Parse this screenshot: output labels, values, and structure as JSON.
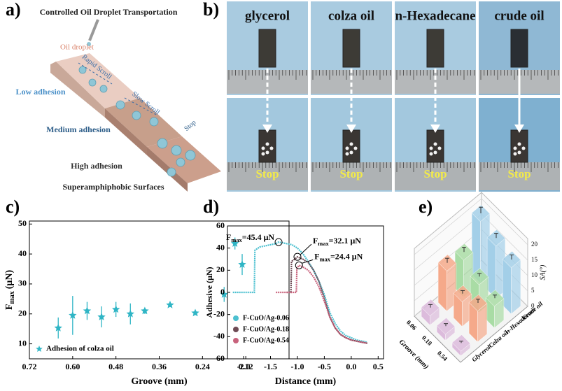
{
  "panel_labels": [
    "a)",
    "b)",
    "c)",
    "d)",
    "e)"
  ],
  "illustration": {
    "title": "Controlled Oil Droplet Transportation",
    "droplet": "Oil droplet",
    "scrolls": [
      "Rapid Scroll",
      "Slow Scroll",
      "Stop"
    ],
    "zones": [
      "Low adhesion",
      "Medium adhesion",
      "High adhesion"
    ],
    "caption": "Superamphiphobic Surfaces"
  },
  "photos": {
    "liquids": [
      "glycerol",
      "colza oil",
      "n-Hexadecane",
      "crude oil"
    ],
    "end_label": "Stop"
  },
  "chart_data": [
    {
      "type": "scatter",
      "xlabel": "Groove (mm)",
      "ylabel": {
        "symbol": "F",
        "sub": "max",
        "unit": "(μN)"
      },
      "xlim": [
        0.72,
        0
      ],
      "ylim": [
        5,
        51
      ],
      "xticks": [
        0.72,
        {
          "value": 0.6,
          "label": "0.60"
        },
        0.48,
        0.36,
        0.24,
        0.12
      ],
      "yticks": [
        10,
        20,
        30,
        40,
        50
      ],
      "legend": "lower left",
      "series": [
        {
          "name": "Adhesion of colza oil",
          "color": "#2fb5c5",
          "x": [
            0.64,
            0.6,
            0.56,
            0.52,
            0.48,
            0.44,
            0.4,
            0.33,
            0.26,
            0.18,
            0.15,
            0.13
          ],
          "values": [
            15.3,
            19.5,
            21,
            19,
            21.5,
            20,
            21,
            23,
            20.3,
            26.5,
            43.5,
            36.5
          ],
          "errors": [
            3.5,
            6.5,
            3,
            3.5,
            2.5,
            3.5,
            1,
            0.7,
            0.3,
            2.5,
            2,
            3.5
          ]
        }
      ]
    },
    {
      "type": "line",
      "xlabel": "Distance (mm)",
      "ylabel": "Adhesive (μN)",
      "xlim": [
        -2.3,
        0.6
      ],
      "ylim": [
        -60,
        60
      ],
      "xticks": [
        {
          "value": -2,
          "label": "-2.0"
        },
        -1.5,
        {
          "value": -1,
          "label": "-1.0"
        },
        -0.5,
        {
          "value": 0,
          "label": "0.0"
        },
        0.5
      ],
      "yticks": [
        -60,
        -40,
        -20,
        0,
        20,
        40,
        60
      ],
      "legend": "lower left",
      "series": [
        {
          "name": "F-CuO/Ag-0.06",
          "color": "#4cc0d0",
          "x": [
            -2.2,
            -1.85,
            -1.8,
            -1.79,
            -1.7,
            -1.6,
            -1.5,
            -1.4,
            -1.35,
            -1.3,
            -1.2,
            -1.1,
            -1.0,
            -0.9,
            -0.8,
            -0.7,
            -0.6,
            -0.5,
            -0.4,
            -0.3,
            -0.2,
            -0.1,
            0.0,
            0.1,
            0.2,
            0.3
          ],
          "values": [
            0,
            0,
            0,
            38,
            41,
            42,
            43,
            44,
            45.4,
            45,
            44,
            43,
            40,
            35,
            28,
            20,
            10,
            -2,
            -18,
            -28,
            -35,
            -39,
            -41,
            -43,
            -44,
            -45
          ]
        },
        {
          "name": "F-CuO/Ag-0.18",
          "color": "#6e4b55",
          "x": [
            -1.2,
            -1.12,
            -1.11,
            -1.05,
            -1.0,
            -0.95,
            -0.9,
            -0.8,
            -0.7,
            -0.6,
            -0.5,
            -0.4,
            -0.3,
            -0.2,
            -0.1,
            0.0,
            0.1,
            0.2,
            0.3
          ],
          "values": [
            0,
            0,
            28,
            30,
            32.1,
            31,
            30,
            27,
            20,
            10,
            -5,
            -22,
            -32,
            -38,
            -41,
            -43,
            -44,
            -45,
            -46
          ]
        },
        {
          "name": "F-CuO/Ag-0.54",
          "color": "#c8627c",
          "x": [
            -1.4,
            -1.2,
            -1.02,
            -1.01,
            -0.97,
            -0.9,
            -0.8,
            -0.7,
            -0.6,
            -0.5,
            -0.4,
            -0.3,
            -0.2,
            -0.1,
            0.0,
            0.1,
            0.2,
            0.3
          ],
          "values": [
            0,
            0,
            0,
            22,
            24.4,
            23,
            20,
            14,
            5,
            -8,
            -22,
            -32,
            -38,
            -41,
            -43,
            -44,
            -45,
            -46
          ]
        }
      ],
      "annotations": [
        [
          "F",
          "max",
          "=45.4 μN"
        ],
        [
          "F",
          "max",
          "=32.1 μN"
        ],
        [
          "F",
          "max",
          "=24.4 μN"
        ]
      ]
    },
    {
      "type": "bar3d",
      "xlabel": "Groove (mm)",
      "zlabel": "SA(°)",
      "categories": [
        "0.06",
        "0.18",
        "0.54"
      ],
      "zlim": [
        0,
        22
      ],
      "zticks": [
        0,
        5,
        10,
        15,
        20
      ],
      "series": [
        {
          "name": "Glycerol",
          "color": "#dcbbdc",
          "values": [
            3,
            2,
            1.5
          ],
          "errors": [
            1,
            0.8,
            0.6
          ]
        },
        {
          "name": "Colza oil",
          "color": "#f5a98a",
          "values": [
            13,
            8,
            10
          ],
          "errors": [
            1.5,
            1,
            1.2
          ]
        },
        {
          "name": "n-Hexadecane",
          "color": "#a9dca5",
          "values": [
            12,
            9,
            7
          ],
          "errors": [
            1.5,
            1,
            1
          ]
        },
        {
          "name": "Crude oil",
          "color": "#a3cfe8",
          "values": [
            20,
            17,
            15
          ],
          "errors": [
            2,
            1.5,
            1.5
          ]
        }
      ]
    }
  ]
}
